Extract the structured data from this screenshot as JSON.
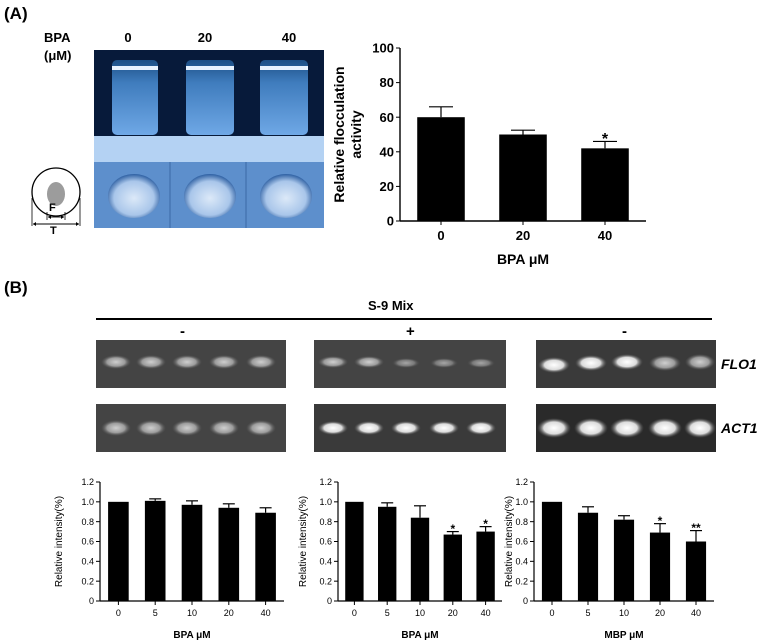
{
  "panelA": {
    "label": "(A)",
    "photo": {
      "bpa_label_line1": "BPA",
      "bpa_label_line2": "(μM)",
      "doses": [
        "0",
        "20",
        "40"
      ],
      "diagram_F": "F",
      "diagram_T": "T"
    }
  },
  "panelB": {
    "label": "(B)",
    "s9_title": "S-9 Mix",
    "groups": [
      "-",
      "+",
      "-"
    ],
    "gel_labels": [
      "FLO1",
      "ACT1"
    ]
  },
  "chart_data": [
    {
      "type": "bar",
      "categories": [
        "0",
        "20",
        "40"
      ],
      "values": [
        60,
        50,
        42
      ],
      "errors": [
        6,
        2.5,
        4
      ],
      "significance": [
        "",
        "",
        "*"
      ],
      "ylabel": "Relative flocculation activity",
      "ylabel_lines": [
        "Relative flocculation",
        "activity"
      ],
      "xlabel": "BPA μM",
      "ylim": [
        0,
        100
      ],
      "yticks": [
        "0",
        "20",
        "40",
        "60",
        "80",
        "100"
      ],
      "bar_color": "#000000"
    },
    {
      "type": "bar",
      "categories": [
        "0",
        "5",
        "10",
        "20",
        "40"
      ],
      "values": [
        1.0,
        1.01,
        0.97,
        0.94,
        0.89
      ],
      "errors": [
        0,
        0.02,
        0.04,
        0.04,
        0.05
      ],
      "significance": [
        "",
        "",
        "",
        "",
        ""
      ],
      "ylabel": "Relative intensity(%)",
      "xlabel": "BPA μM",
      "ylim": [
        0,
        1.2
      ],
      "yticks": [
        "0",
        "0.2",
        "0.4",
        "0.6",
        "0.8",
        "1.0",
        "1.2"
      ],
      "bar_color": "#000000"
    },
    {
      "type": "bar",
      "categories": [
        "0",
        "5",
        "10",
        "20",
        "40"
      ],
      "values": [
        1.0,
        0.95,
        0.84,
        0.67,
        0.7
      ],
      "errors": [
        0,
        0.04,
        0.12,
        0.03,
        0.05
      ],
      "significance": [
        "",
        "",
        "",
        "*",
        "*"
      ],
      "ylabel": "Relative intensity(%)",
      "xlabel": "BPA μM",
      "ylim": [
        0,
        1.2
      ],
      "yticks": [
        "0",
        "0.2",
        "0.4",
        "0.6",
        "0.8",
        "1.0",
        "1.2"
      ],
      "bar_color": "#000000"
    },
    {
      "type": "bar",
      "categories": [
        "0",
        "5",
        "10",
        "20",
        "40"
      ],
      "values": [
        1.0,
        0.89,
        0.82,
        0.69,
        0.6
      ],
      "errors": [
        0,
        0.06,
        0.04,
        0.09,
        0.11
      ],
      "significance": [
        "",
        "",
        "",
        "*",
        "**"
      ],
      "ylabel": "Relative intensity(%)",
      "xlabel": "MBP μM",
      "ylim": [
        0,
        1.2
      ],
      "yticks": [
        "0",
        "0.2",
        "0.4",
        "0.6",
        "0.8",
        "1.0",
        "1.2"
      ],
      "bar_color": "#000000"
    }
  ]
}
